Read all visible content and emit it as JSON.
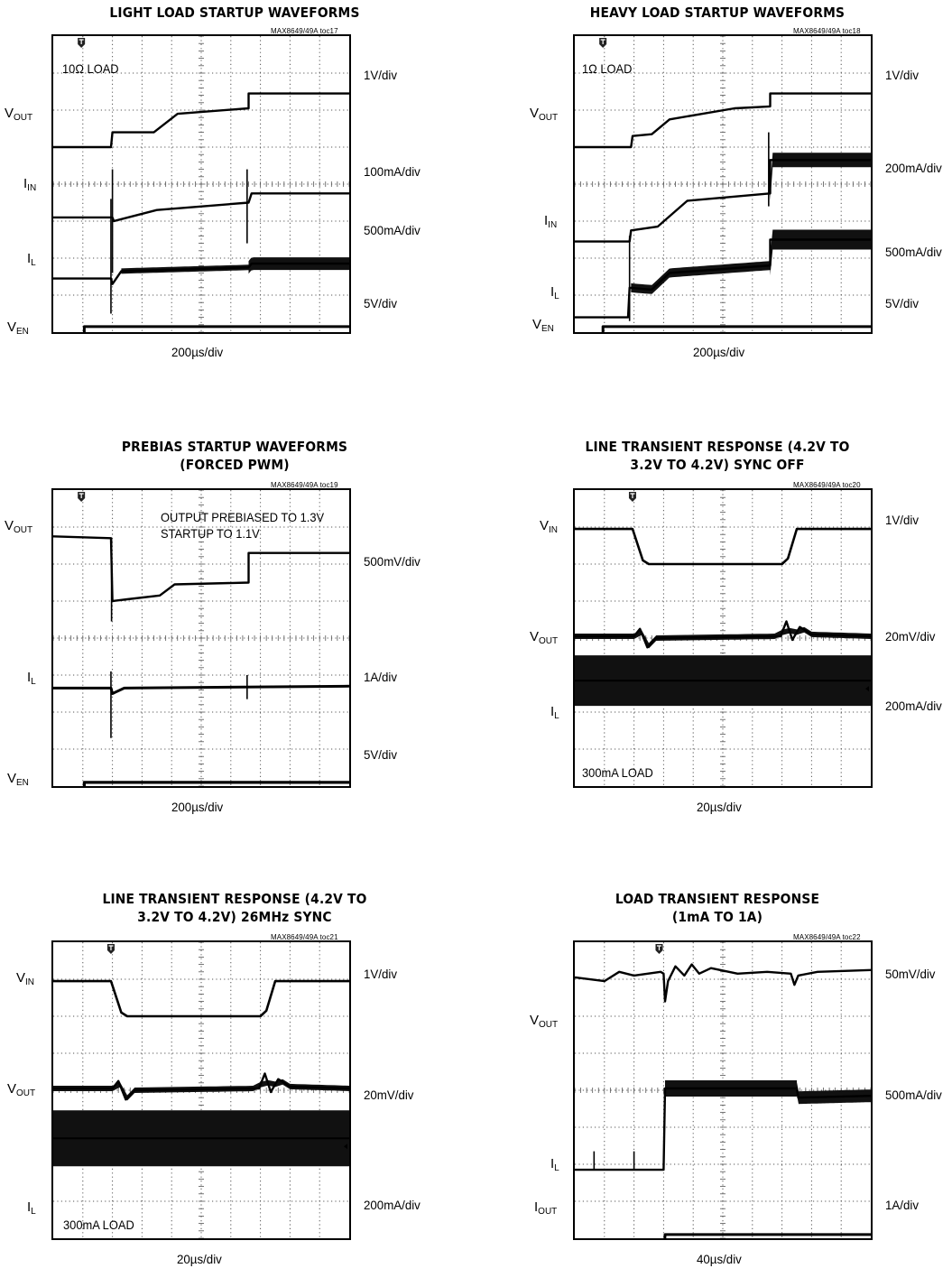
{
  "chart_data": [
    {
      "type": "line",
      "title": "LIGHT LOAD STARTUP WAVEFORMS",
      "toc_id": "MAX8649/49A toc17",
      "xlabel": "200µs/div",
      "annotations": [
        "10Ω LOAD"
      ],
      "grid": true,
      "x_divisions": 10,
      "y_divisions": 8,
      "channels": [
        {
          "name": "V",
          "sub": "OUT",
          "scale": "1V/div"
        },
        {
          "name": "I",
          "sub": "IN",
          "scale": "100mA/div"
        },
        {
          "name": "I",
          "sub": "L",
          "scale": "500mA/div"
        },
        {
          "name": "V",
          "sub": "EN",
          "scale": "5V/div"
        }
      ],
      "series": [
        {
          "points": [
            [
              0,
              5.0
            ],
            [
              1.95,
              5.0
            ],
            [
              2.0,
              5.4
            ],
            [
              3.4,
              5.4
            ],
            [
              4.2,
              5.9
            ],
            [
              6.6,
              6.05
            ],
            [
              6.6,
              6.45
            ],
            [
              10,
              6.45
            ]
          ],
          "spikes": [],
          "width": 2.4
        },
        {
          "points": [
            [
              0,
              3.1
            ],
            [
              2.0,
              3.1
            ],
            [
              2.05,
              3.0
            ],
            [
              3.5,
              3.3
            ],
            [
              6.6,
              3.5
            ],
            [
              6.7,
              3.75
            ],
            [
              10,
              3.75
            ]
          ],
          "spikes": [
            [
              2.0,
              1.6,
              4.4
            ],
            [
              6.55,
              2.4,
              4.4
            ]
          ],
          "width": 2.4
        },
        {
          "points": [
            [
              0,
              1.45
            ],
            [
              1.95,
              1.45
            ],
            [
              2.0,
              1.3
            ],
            [
              2.3,
              1.65
            ],
            [
              6.6,
              1.75
            ],
            [
              6.7,
              1.85
            ],
            [
              10,
              1.85
            ]
          ],
          "spikes": [
            [
              1.95,
              0.5,
              3.6
            ]
          ],
          "width": 2.4,
          "bands": [
            [
              2.3,
              6.6,
              6
            ],
            [
              6.6,
              10,
              14
            ]
          ]
        },
        {
          "points": [
            [
              0,
              -0.9
            ],
            [
              1.05,
              -0.9
            ],
            [
              1.05,
              0.15
            ],
            [
              10,
              0.15
            ]
          ],
          "spikes": [],
          "width": 3
        }
      ]
    },
    {
      "type": "line",
      "title": "HEAVY LOAD STARTUP WAVEFORMS",
      "toc_id": "MAX8649/49A toc18",
      "xlabel": "200µs/div",
      "annotations": [
        "1Ω LOAD"
      ],
      "grid": true,
      "x_divisions": 10,
      "y_divisions": 8,
      "channels": [
        {
          "name": "V",
          "sub": "OUT",
          "scale": "1V/div"
        },
        {
          "name": "I",
          "sub": "IN",
          "scale": "200mA/div"
        },
        {
          "name": "I",
          "sub": "L",
          "scale": "500mA/div"
        },
        {
          "name": "V",
          "sub": "EN",
          "scale": "5V/div"
        }
      ],
      "series": [
        {
          "points": [
            [
              0,
              5.0
            ],
            [
              1.9,
              5.0
            ],
            [
              1.95,
              5.3
            ],
            [
              2.6,
              5.35
            ],
            [
              3.2,
              5.75
            ],
            [
              5.4,
              6.05
            ],
            [
              6.6,
              6.1
            ],
            [
              6.6,
              6.45
            ],
            [
              10,
              6.45
            ]
          ],
          "spikes": [],
          "width": 2.4
        },
        {
          "points": [
            [
              0,
              2.45
            ],
            [
              1.85,
              2.45
            ],
            [
              1.9,
              2.75
            ],
            [
              2.8,
              2.85
            ],
            [
              3.8,
              3.55
            ],
            [
              6.6,
              3.75
            ],
            [
              6.6,
              4.65
            ],
            [
              10,
              4.65
            ]
          ],
          "spikes": [
            [
              6.55,
              3.4,
              5.4
            ]
          ],
          "width": 2.4,
          "bands": [
            [
              6.6,
              10,
              16
            ]
          ]
        },
        {
          "points": [
            [
              0,
              0.4
            ],
            [
              1.8,
              0.4
            ],
            [
              1.85,
              1.2
            ],
            [
              2.6,
              1.15
            ],
            [
              3.2,
              1.6
            ],
            [
              6.6,
              1.8
            ],
            [
              6.6,
              2.5
            ],
            [
              10,
              2.5
            ]
          ],
          "spikes": [
            [
              1.85,
              0.3,
              2.6
            ]
          ],
          "width": 2.4,
          "bands": [
            [
              1.9,
              6.6,
              10
            ],
            [
              6.6,
              10,
              22
            ]
          ]
        },
        {
          "points": [
            [
              0,
              -0.9
            ],
            [
              0.95,
              -0.9
            ],
            [
              0.95,
              0.15
            ],
            [
              10,
              0.15
            ]
          ],
          "spikes": [],
          "width": 3
        }
      ]
    },
    {
      "type": "line",
      "title": "PREBIAS STARTUP WAVEFORMS\n(FORCED PWM)",
      "toc_id": "MAX8649/49A toc19",
      "xlabel": "200µs/div",
      "annotations": [
        "OUTPUT PREBIASED TO 1.3V",
        "STARTUP TO 1.1V"
      ],
      "grid": true,
      "x_divisions": 10,
      "y_divisions": 8,
      "channels": [
        {
          "name": "V",
          "sub": "OUT",
          "scale": "500mV/div"
        },
        {
          "name": "I",
          "sub": "L",
          "scale": "1A/div"
        },
        {
          "name": "V",
          "sub": "EN",
          "scale": "5V/div"
        }
      ],
      "series": [
        {
          "points": [
            [
              0,
              6.75
            ],
            [
              1.95,
              6.7
            ],
            [
              2.0,
              5.0
            ],
            [
              2.5,
              5.05
            ],
            [
              3.6,
              5.15
            ],
            [
              4.1,
              5.45
            ],
            [
              6.6,
              5.5
            ],
            [
              6.6,
              6.3
            ],
            [
              10,
              6.3
            ]
          ],
          "spikes": [
            [
              1.97,
              4.45,
              6.7
            ]
          ],
          "width": 2.4
        },
        {
          "points": [
            [
              0,
              2.65
            ],
            [
              1.95,
              2.65
            ],
            [
              2.0,
              2.5
            ],
            [
              2.4,
              2.65
            ],
            [
              10,
              2.7
            ]
          ],
          "spikes": [
            [
              1.95,
              1.3,
              3.1
            ],
            [
              6.55,
              2.35,
              3.0
            ]
          ],
          "width": 3
        },
        {
          "points": [
            [
              0,
              -0.9
            ],
            [
              1.05,
              -0.9
            ],
            [
              1.05,
              0.1
            ],
            [
              10,
              0.1
            ]
          ],
          "spikes": [],
          "width": 3.2
        }
      ]
    },
    {
      "type": "line",
      "title": "LINE TRANSIENT RESPONSE (4.2V TO\n3.2V TO 4.2V) SYNC OFF",
      "toc_id": "MAX8649/49A toc20",
      "xlabel": "20µs/div",
      "annotations": [
        "300mA LOAD"
      ],
      "grid": true,
      "x_divisions": 10,
      "y_divisions": 8,
      "channels": [
        {
          "name": "V",
          "sub": "IN",
          "scale": "1V/div"
        },
        {
          "name": "V",
          "sub": "OUT",
          "scale": "20mV/div"
        },
        {
          "name": "I",
          "sub": "L",
          "scale": "200mA/div"
        }
      ],
      "series": [
        {
          "points": [
            [
              0,
              6.95
            ],
            [
              1.95,
              6.95
            ],
            [
              2.3,
              6.1
            ],
            [
              2.5,
              6.0
            ],
            [
              7.0,
              6.0
            ],
            [
              7.2,
              6.15
            ],
            [
              7.5,
              6.95
            ],
            [
              10,
              6.95
            ]
          ],
          "spikes": [],
          "width": 2.6
        },
        {
          "points": [
            [
              0,
              4.05
            ],
            [
              2.0,
              4.05
            ],
            [
              2.2,
              4.25
            ],
            [
              2.45,
              3.75
            ],
            [
              2.75,
              4.0
            ],
            [
              6.95,
              4.05
            ],
            [
              7.15,
              4.45
            ],
            [
              7.35,
              3.95
            ],
            [
              7.6,
              4.3
            ],
            [
              8.0,
              4.1
            ],
            [
              10,
              4.05
            ]
          ],
          "spikes": [],
          "width": 2.4,
          "bands": [
            [
              0,
              10,
              6
            ]
          ]
        },
        {
          "points": [
            [
              0,
              2.85
            ],
            [
              10,
              2.85
            ]
          ],
          "spikes": [],
          "width": 2,
          "bands": [
            [
              0,
              10,
              56
            ]
          ]
        }
      ]
    },
    {
      "type": "line",
      "title": "LINE TRANSIENT RESPONSE (4.2V TO\n3.2V TO 4.2V) 26MHz SYNC",
      "toc_id": "MAX8649/49A toc21",
      "xlabel": "20µs/div",
      "annotations": [
        "300mA LOAD"
      ],
      "grid": true,
      "x_divisions": 10,
      "y_divisions": 8,
      "channels": [
        {
          "name": "V",
          "sub": "IN",
          "scale": "1V/div"
        },
        {
          "name": "V",
          "sub": "OUT",
          "scale": "20mV/div"
        },
        {
          "name": "I",
          "sub": "L",
          "scale": "200mA/div"
        }
      ],
      "series": [
        {
          "points": [
            [
              0,
              6.95
            ],
            [
              1.95,
              6.95
            ],
            [
              2.3,
              6.1
            ],
            [
              2.5,
              6.0
            ],
            [
              7.0,
              6.0
            ],
            [
              7.2,
              6.15
            ],
            [
              7.5,
              6.95
            ],
            [
              10,
              6.95
            ]
          ],
          "spikes": [],
          "width": 2.6
        },
        {
          "points": [
            [
              0,
              4.05
            ],
            [
              2.0,
              4.05
            ],
            [
              2.2,
              4.25
            ],
            [
              2.45,
              3.75
            ],
            [
              2.75,
              4.0
            ],
            [
              6.95,
              4.05
            ],
            [
              7.15,
              4.45
            ],
            [
              7.35,
              3.95
            ],
            [
              7.6,
              4.3
            ],
            [
              8.0,
              4.1
            ],
            [
              10,
              4.05
            ]
          ],
          "spikes": [],
          "width": 2.4,
          "bands": [
            [
              0,
              10,
              6
            ]
          ]
        },
        {
          "points": [
            [
              0,
              2.7
            ],
            [
              10,
              2.7
            ]
          ],
          "spikes": [],
          "width": 2,
          "bands": [
            [
              0,
              10,
              62
            ]
          ]
        }
      ]
    },
    {
      "type": "line",
      "title": "LOAD TRANSIENT RESPONSE\n(1mA TO 1A)",
      "toc_id": "MAX8649/49A toc22",
      "xlabel": "40µs/div",
      "annotations": [],
      "grid": true,
      "x_divisions": 10,
      "y_divisions": 8,
      "channels": [
        {
          "name": "V",
          "sub": "OUT",
          "scale": "50mV/div"
        },
        {
          "name": "I",
          "sub": "L",
          "scale": "500mA/div"
        },
        {
          "name": "I",
          "sub": "OUT",
          "scale": "1A/div"
        }
      ],
      "series": [
        {
          "points": [
            [
              0,
              7.05
            ],
            [
              1.0,
              6.95
            ],
            [
              1.5,
              7.2
            ],
            [
              2.0,
              7.1
            ],
            [
              2.9,
              7.2
            ],
            [
              3.0,
              7.15
            ],
            [
              3.05,
              6.4
            ],
            [
              3.15,
              6.95
            ],
            [
              3.4,
              7.35
            ],
            [
              3.7,
              7.1
            ],
            [
              3.95,
              7.4
            ],
            [
              4.2,
              7.15
            ],
            [
              4.6,
              7.3
            ],
            [
              5.5,
              7.15
            ],
            [
              6.5,
              7.2
            ],
            [
              7.3,
              7.15
            ],
            [
              7.42,
              6.85
            ],
            [
              7.55,
              7.1
            ],
            [
              8.2,
              7.2
            ],
            [
              10,
              7.25
            ]
          ],
          "spikes": [],
          "width": 2.4
        },
        {
          "points": [
            [
              0,
              1.85
            ],
            [
              3.0,
              1.85
            ],
            [
              3.05,
              4.05
            ],
            [
              7.5,
              4.05
            ],
            [
              7.55,
              3.8
            ],
            [
              10,
              3.85
            ]
          ],
          "spikes": [
            [
              0.65,
              1.85,
              2.35
            ],
            [
              2.0,
              1.85,
              2.35
            ]
          ],
          "width": 2.4,
          "bands": [
            [
              3.05,
              7.5,
              18
            ],
            [
              7.5,
              10,
              14
            ]
          ]
        },
        {
          "points": [
            [
              0,
              -0.9
            ],
            [
              3.0,
              -0.9
            ],
            [
              3.05,
              0.1
            ],
            [
              10,
              0.1
            ]
          ],
          "spikes": [],
          "width": 3
        }
      ]
    }
  ]
}
